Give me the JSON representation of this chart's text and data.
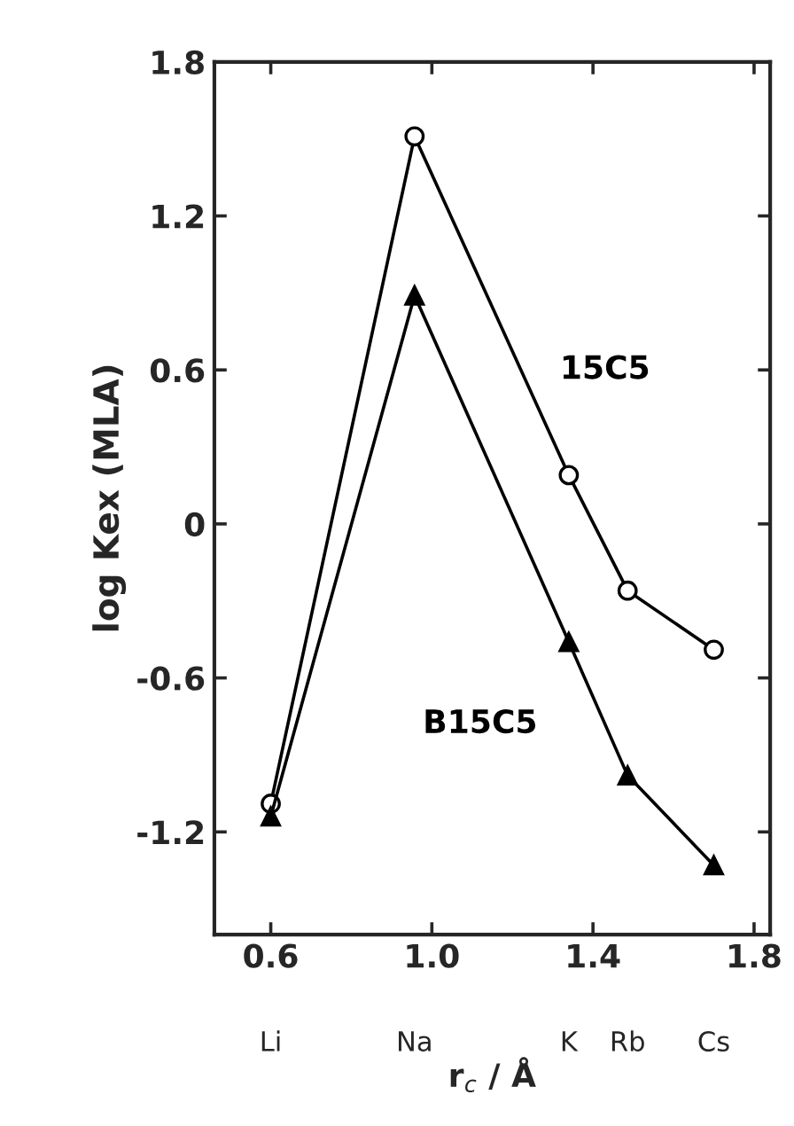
{
  "chart_data": {
    "type": "line",
    "xlabel": "r$_{c}$ / Å",
    "ylabel": "log Kex (MLA)",
    "x": [
      0.6,
      0.957,
      1.34,
      1.486,
      1.7
    ],
    "series": [
      {
        "name": "15C5",
        "color": "#000000",
        "marker": "circle",
        "values": [
          -1.09,
          1.51,
          0.19,
          -0.26,
          -0.49
        ]
      },
      {
        "name": "B15C5",
        "color": "#000000",
        "marker": "triangle",
        "values": [
          -1.14,
          0.89,
          -0.46,
          -0.98,
          -1.33
        ]
      }
    ],
    "xlim": [
      0.46,
      1.84
    ],
    "ylim": [
      -1.6,
      1.8
    ],
    "xticks": [
      0.6,
      {
        "value": 1.0,
        "label": "1.0"
      },
      1.4,
      1.8
    ],
    "yticks": [
      {
        "value": -1.2,
        "label": "-1.2"
      },
      {
        "value": -0.6,
        "label": "-0.6"
      },
      0,
      0.6,
      1.2,
      1.8
    ],
    "annotations": [
      "Li",
      "Na",
      "K",
      "Rb",
      "Cs"
    ],
    "grid": false,
    "legend": false,
    "line_style": "solid"
  }
}
